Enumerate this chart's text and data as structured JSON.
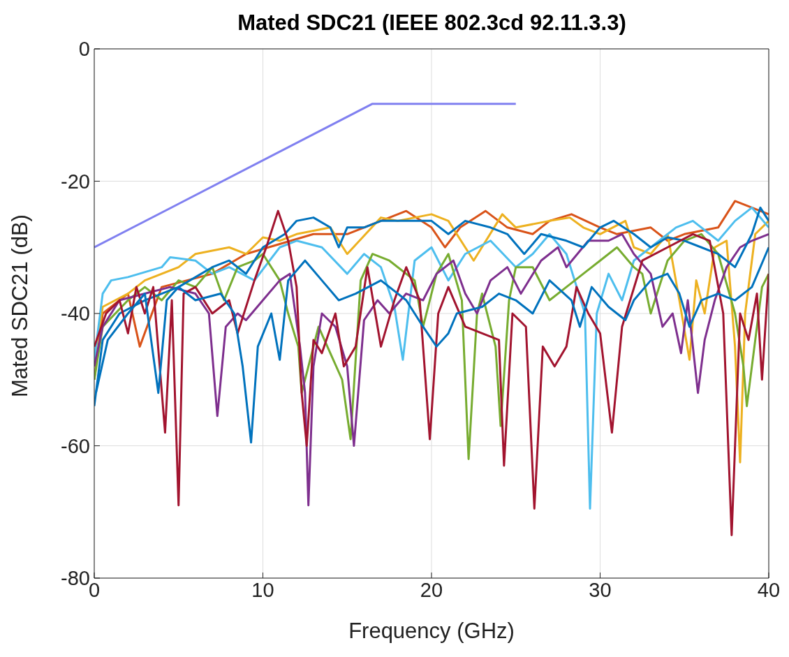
{
  "chart_data": {
    "type": "line",
    "title": "Mated SDC21 (IEEE 802.3cd 92.11.3.3)",
    "xlabel": "Frequency (GHz)",
    "ylabel": "Mated SDC21 (dB)",
    "xlim": [
      0,
      40
    ],
    "xticks": [
      0,
      10,
      20,
      30,
      40
    ],
    "ylim": [
      -80,
      0
    ],
    "yticks": [
      -80,
      -60,
      -40,
      -20,
      0
    ],
    "grid": true,
    "marker": "none",
    "line_style": "solid",
    "series": [
      {
        "color": "#d95319",
        "x": [
          0,
          0.5,
          2,
          2.7,
          4,
          7,
          9,
          11,
          13,
          15,
          17,
          18.5,
          20,
          20.8,
          21.7,
          23.2,
          24.5,
          26,
          27,
          28.3,
          30,
          31,
          33,
          34,
          35,
          37,
          38,
          39,
          40
        ],
        "values": [
          -50,
          -40,
          -37,
          -45,
          -36,
          -34,
          -31,
          -29.5,
          -28,
          -28,
          -26,
          -24.5,
          -27,
          -30,
          -27,
          -24.5,
          -27,
          -28,
          -26,
          -25,
          -27,
          -28,
          -27,
          -29,
          -28,
          -27,
          -23,
          -24,
          -25
        ]
      },
      {
        "color": "#edb120",
        "x": [
          0,
          0.5,
          2,
          3,
          5,
          6,
          8,
          9,
          10,
          11,
          12,
          14,
          15,
          17,
          18,
          20,
          21,
          22.5,
          24.2,
          25,
          27,
          28.2,
          29,
          30,
          31.5,
          32,
          33,
          34,
          34.7,
          35.3,
          35.7,
          36.2,
          36.8,
          37.5,
          38,
          38.3,
          38.6,
          39.2,
          40
        ],
        "values": [
          -47,
          -39,
          -37,
          -35,
          -33,
          -31,
          -30,
          -31,
          -28.5,
          -29,
          -28,
          -27,
          -31,
          -25.5,
          -26,
          -25,
          -26,
          -32,
          -25,
          -27,
          -26,
          -25.5,
          -27,
          -28,
          -26,
          -30,
          -31,
          -28,
          -38,
          -47,
          -35,
          -40,
          -30,
          -29,
          -45,
          -62.5,
          -40,
          -28,
          -26
        ]
      },
      {
        "color": "#4dbeee",
        "x": [
          0,
          0.5,
          1,
          2,
          4,
          4.5,
          6,
          7,
          8,
          9.5,
          11,
          12,
          13.5,
          15,
          16,
          17,
          17.8,
          18.3,
          19,
          20,
          21,
          22,
          23.5,
          25,
          26,
          27,
          28,
          29.1,
          29.4,
          29.8,
          30.5,
          31.3,
          32,
          33.5,
          34.5,
          35.5,
          36.5,
          37,
          38,
          39,
          40
        ],
        "values": [
          -47,
          -37,
          -35,
          -34.5,
          -33,
          -31.5,
          -32,
          -34,
          -33,
          -35,
          -30,
          -29,
          -30,
          -34,
          -31,
          -33,
          -39,
          -47,
          -32,
          -30,
          -35,
          -31,
          -29,
          -33,
          -31,
          -28,
          -31,
          -40,
          -69.5,
          -40,
          -34,
          -38,
          -32,
          -29,
          -27,
          -26,
          -28,
          -29,
          -26,
          -24,
          -27
        ]
      },
      {
        "color": "#77ac30",
        "x": [
          0,
          0.5,
          2,
          3,
          4,
          5,
          6,
          7,
          7.7,
          8.5,
          9.5,
          10,
          11,
          11.5,
          12.1,
          12.3,
          13.3,
          14,
          14.7,
          15.2,
          15.8,
          16.5,
          17.5,
          19,
          19.5,
          20.3,
          21,
          21.8,
          22.2,
          22.7,
          23,
          23.8,
          24.1,
          24.6,
          25,
          26,
          27,
          28,
          29,
          30,
          31,
          32,
          32.5,
          33,
          34,
          35,
          36,
          37,
          38,
          38.5,
          38.7,
          39.2,
          39.6,
          40
        ],
        "values": [
          -50,
          -42,
          -38,
          -36,
          -38,
          -35,
          -36,
          -33,
          -38,
          -33,
          -32,
          -31,
          -35,
          -40,
          -45,
          -52,
          -42,
          -46,
          -50,
          -59,
          -35,
          -31,
          -32,
          -35,
          -42,
          -34,
          -31,
          -38,
          -62,
          -40,
          -37,
          -45,
          -57,
          -38,
          -33,
          -33,
          -38,
          -36,
          -34,
          -32,
          -30,
          -33,
          -34,
          -40,
          -32,
          -29,
          -28,
          -31,
          -40,
          -48,
          -54,
          -44,
          -36,
          -34
        ]
      },
      {
        "color": "#7e2f8e",
        "x": [
          0,
          0.5,
          1.5,
          3,
          4.5,
          6,
          6.8,
          7.3,
          7.8,
          8.5,
          9,
          10,
          11,
          11.6,
          12.2,
          12.5,
          12.7,
          13,
          13.5,
          14.3,
          15,
          15.4,
          16,
          16.8,
          17.5,
          18.5,
          19.5,
          20.3,
          21.3,
          22,
          22.7,
          23.5,
          24.5,
          25.3,
          26.5,
          27.5,
          28,
          29.3,
          30.5,
          31.3,
          32,
          33,
          33.7,
          34.3,
          34.8,
          35.2,
          35.8,
          36.2,
          36.8,
          37.5,
          38.3,
          39,
          40
        ],
        "values": [
          -48,
          -42,
          -38,
          -37,
          -36,
          -37,
          -40,
          -55.5,
          -42,
          -40,
          -41,
          -38,
          -35,
          -34,
          -45,
          -52,
          -69,
          -48,
          -40,
          -42,
          -48,
          -60,
          -41,
          -38,
          -40,
          -37,
          -38,
          -34,
          -32,
          -37,
          -40,
          -35,
          -33,
          -37,
          -32,
          -30,
          -33,
          -29,
          -29,
          -28,
          -31,
          -34,
          -42,
          -40,
          -46,
          -38,
          -52,
          -44,
          -38,
          -33,
          -30,
          -29,
          -28
        ]
      },
      {
        "color": "#0072bd",
        "x": [
          0,
          0.5,
          1.5,
          3,
          5,
          7,
          8,
          9,
          10,
          11.3,
          12,
          13,
          14,
          14.5,
          15,
          16,
          17,
          19,
          20,
          21,
          22,
          23.5,
          24.5,
          25.5,
          26.5,
          28,
          29,
          30,
          30.8,
          32,
          33,
          34,
          35,
          36,
          37,
          38,
          39,
          39.5,
          40
        ],
        "values": [
          -54,
          -44,
          -40,
          -38,
          -36,
          -33,
          -32,
          -34,
          -30,
          -28,
          -26,
          -25.5,
          -27,
          -30,
          -27,
          -27,
          -26,
          -26,
          -26,
          -28,
          -26,
          -27,
          -28,
          -31,
          -28,
          -29,
          -30,
          -27,
          -26,
          -28,
          -30,
          -28.5,
          -29,
          -30,
          -31,
          -33,
          -28,
          -24,
          -26
        ]
      },
      {
        "color": "#a2142f",
        "x": [
          0,
          0.7,
          1.5,
          2,
          2.5,
          3,
          3.5,
          4.2,
          4.6,
          5,
          5.3,
          6,
          7,
          8,
          8.5,
          9.5,
          10.2,
          10.9,
          11.5,
          12,
          12.3,
          12.6,
          13,
          13.5,
          14.3,
          14.8,
          15.5,
          16.2,
          17,
          17.8,
          18.5,
          19.3,
          19.9,
          20.4,
          21,
          22,
          23,
          24,
          24.3,
          24.8,
          25.6,
          26.1,
          26.6,
          27.3,
          28,
          28.6,
          29.3,
          30,
          30.7,
          31.3,
          32.5,
          34,
          35.5,
          36.5,
          37.3,
          37.8,
          38.3,
          38.8,
          39.3,
          39.6,
          40
        ],
        "values": [
          -45,
          -40,
          -38,
          -43,
          -36,
          -40,
          -36,
          -58,
          -38,
          -69,
          -37,
          -36,
          -40,
          -38,
          -43,
          -35,
          -30,
          -24.5,
          -29,
          -36,
          -52,
          -60,
          -44,
          -46,
          -40,
          -48,
          -45,
          -33,
          -45,
          -38,
          -33,
          -38,
          -59,
          -40,
          -36,
          -42,
          -43,
          -44,
          -63,
          -40,
          -42,
          -69.5,
          -45,
          -48,
          -45,
          -36,
          -40,
          -43,
          -58,
          -42,
          -32,
          -30,
          -28,
          -29,
          -40,
          -73.5,
          -40,
          -44,
          -37,
          -50,
          -34
        ]
      },
      {
        "color": "#0072bd",
        "x": [
          0.1,
          0.8,
          2,
          3,
          3.8,
          4.3,
          5,
          6,
          7.5,
          8.3,
          8.8,
          9.3,
          9.7,
          10.5,
          11,
          11.5,
          12.5,
          13.5,
          14.5,
          15.5,
          17,
          18.5,
          19.5,
          20.3,
          21,
          21.5,
          23,
          24,
          25,
          26,
          27,
          28.3,
          28.8,
          29.5,
          30.5,
          31.5,
          32,
          33,
          34,
          34.7,
          35.3,
          36,
          37,
          38,
          39,
          40
        ],
        "values": [
          -52,
          -44,
          -40,
          -37,
          -52,
          -38,
          -36,
          -38,
          -37,
          -40,
          -48,
          -59.5,
          -45,
          -40,
          -47,
          -35,
          -32,
          -35,
          -38,
          -37,
          -35,
          -38,
          -42,
          -45,
          -43,
          -40,
          -39,
          -37,
          -38,
          -40,
          -35,
          -38,
          -42,
          -36,
          -39,
          -41,
          -38,
          -35,
          -34,
          -37,
          -42,
          -38,
          -37,
          -38,
          -36,
          -30
        ]
      },
      {
        "color": "#8080f0",
        "x": [
          0,
          16.5,
          25
        ],
        "values": [
          -30,
          -8.3,
          -8.3
        ]
      }
    ]
  }
}
